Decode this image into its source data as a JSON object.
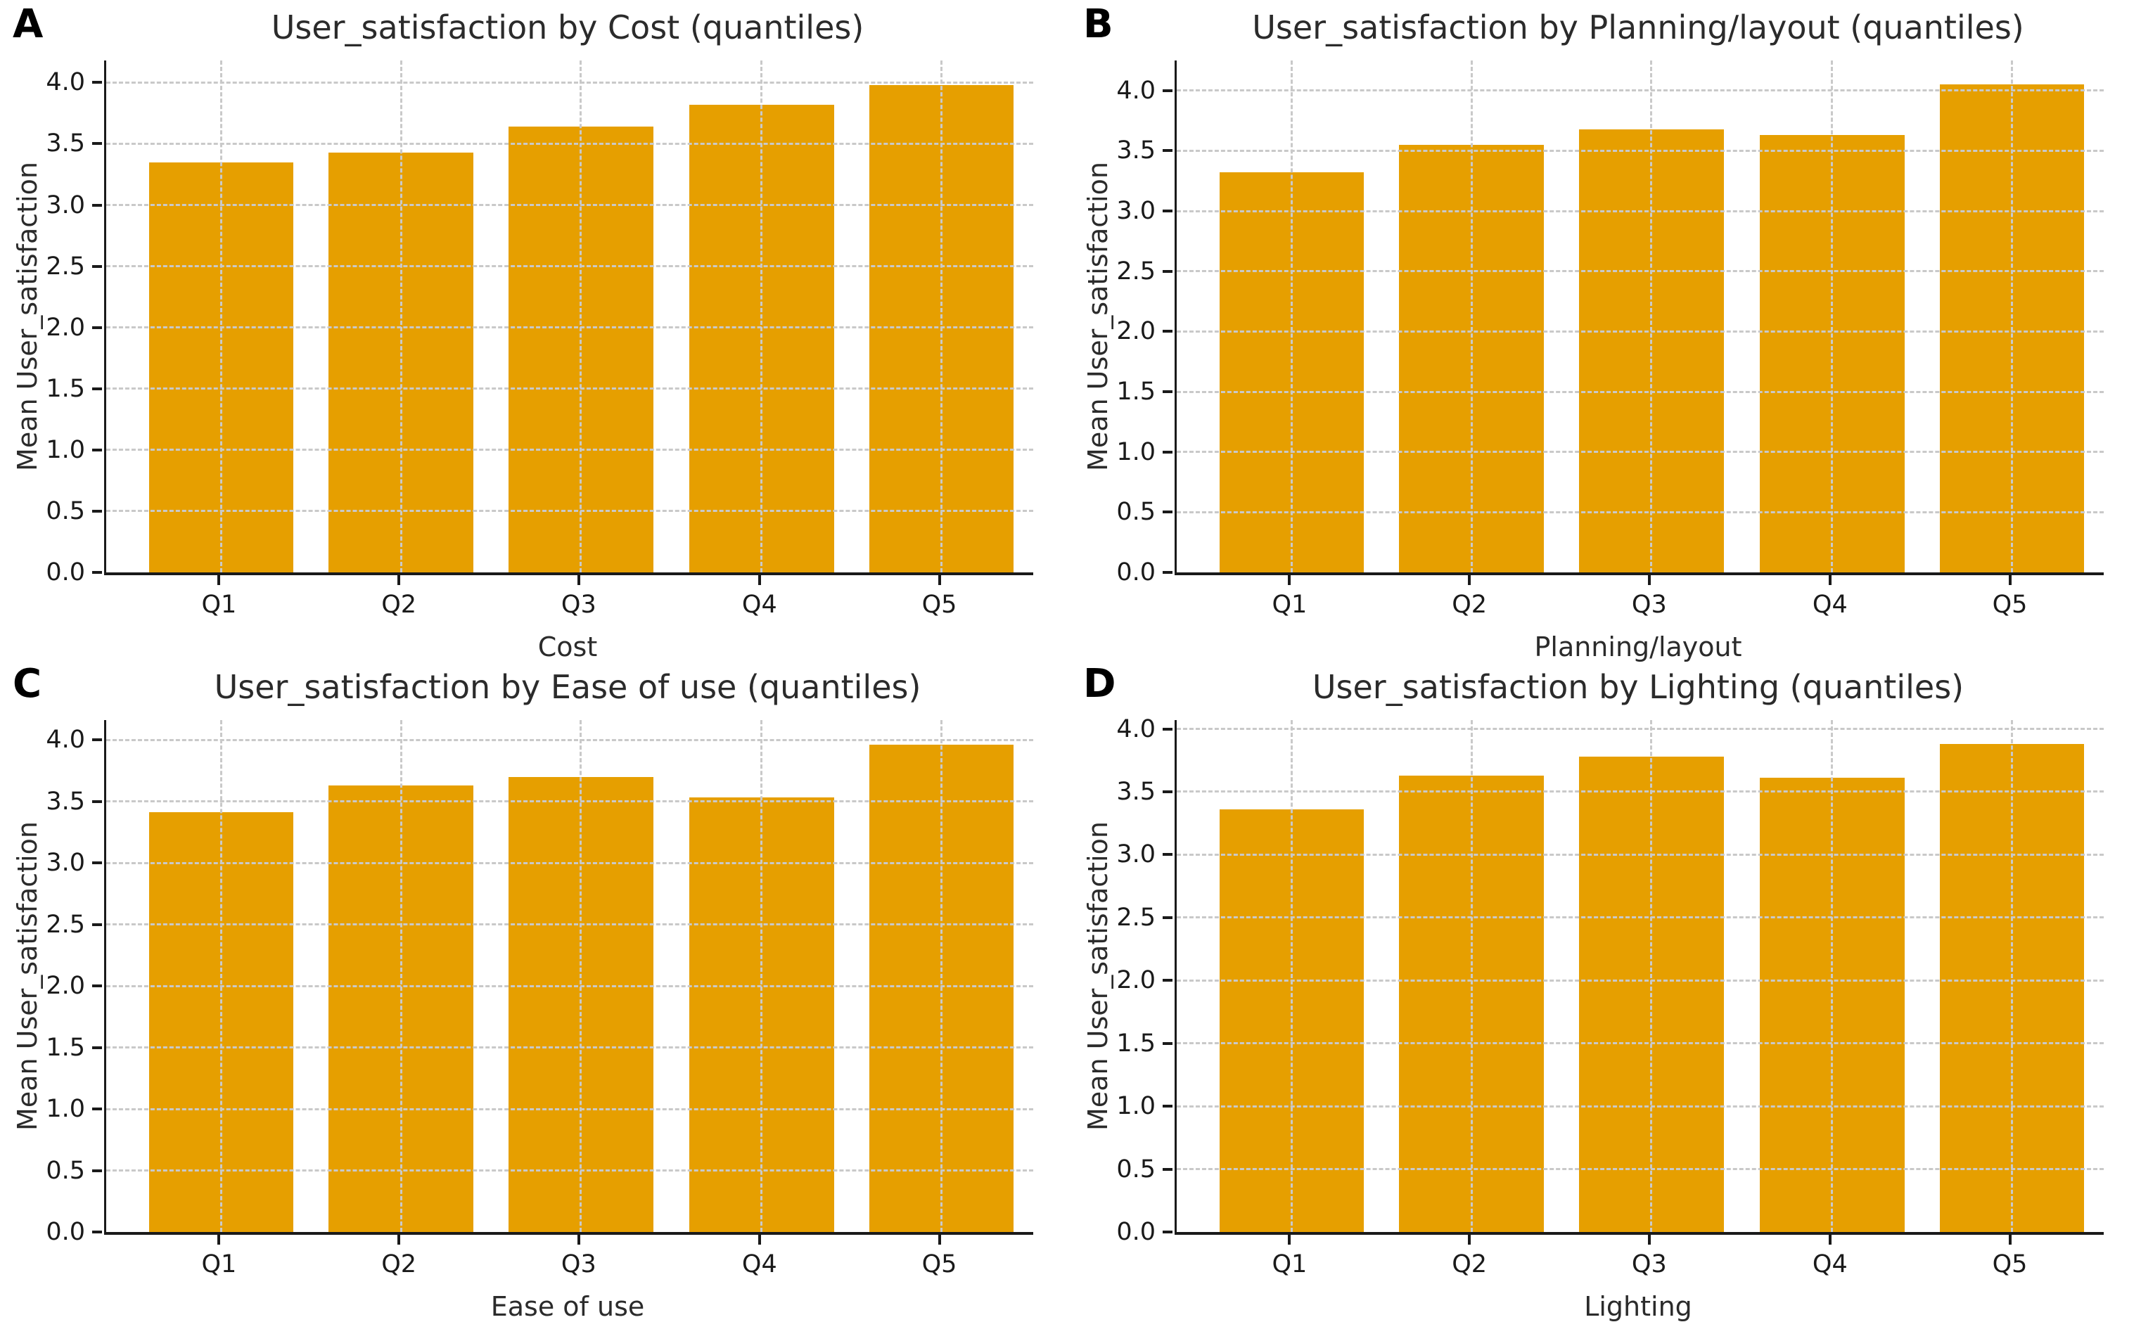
{
  "figure": {
    "background": "#ffffff",
    "colors": {
      "bar": "#E69F00",
      "grid": "#c9c9c9",
      "spine": "#1a1a1a",
      "text": "#2b2b2b"
    }
  },
  "chart_data": [
    {
      "type": "bar",
      "panel_label": "A",
      "title": "User_satisfaction by Cost (quantiles)",
      "xlabel": "Cost",
      "ylabel": "Mean User_satisfaction",
      "categories": [
        "Q1",
        "Q2",
        "Q3",
        "Q4",
        "Q5"
      ],
      "values": [
        3.35,
        3.43,
        3.64,
        3.82,
        3.98
      ],
      "ylim": [
        0,
        4.18
      ],
      "yticks": [
        0.0,
        0.5,
        1.0,
        1.5,
        2.0,
        2.5,
        3.0,
        3.5,
        4.0
      ],
      "grid": true,
      "legend": null
    },
    {
      "type": "bar",
      "panel_label": "B",
      "title": "User_satisfaction by Planning/layout (quantiles)",
      "xlabel": "Planning/layout",
      "ylabel": "Mean User_satisfaction",
      "categories": [
        "Q1",
        "Q2",
        "Q3",
        "Q4",
        "Q5"
      ],
      "values": [
        3.32,
        3.55,
        3.68,
        3.63,
        4.05
      ],
      "ylim": [
        0,
        4.25
      ],
      "yticks": [
        0.0,
        0.5,
        1.0,
        1.5,
        2.0,
        2.5,
        3.0,
        3.5,
        4.0
      ],
      "grid": true,
      "legend": null
    },
    {
      "type": "bar",
      "panel_label": "C",
      "title": "User_satisfaction by Ease of use (quantiles)",
      "xlabel": "Ease of use",
      "ylabel": "Mean User_satisfaction",
      "categories": [
        "Q1",
        "Q2",
        "Q3",
        "Q4",
        "Q5"
      ],
      "values": [
        3.41,
        3.63,
        3.7,
        3.53,
        3.96
      ],
      "ylim": [
        0,
        4.16
      ],
      "yticks": [
        0.0,
        0.5,
        1.0,
        1.5,
        2.0,
        2.5,
        3.0,
        3.5,
        4.0
      ],
      "grid": true,
      "legend": null
    },
    {
      "type": "bar",
      "panel_label": "D",
      "title": "User_satisfaction by Lighting (quantiles)",
      "xlabel": "Lighting",
      "ylabel": "Mean User_satisfaction",
      "categories": [
        "Q1",
        "Q2",
        "Q3",
        "Q4",
        "Q5"
      ],
      "values": [
        3.36,
        3.63,
        3.78,
        3.61,
        3.88
      ],
      "ylim": [
        0,
        4.07
      ],
      "yticks": [
        0.0,
        0.5,
        1.0,
        1.5,
        2.0,
        2.5,
        3.0,
        3.5,
        4.0
      ],
      "grid": true,
      "legend": null
    }
  ]
}
